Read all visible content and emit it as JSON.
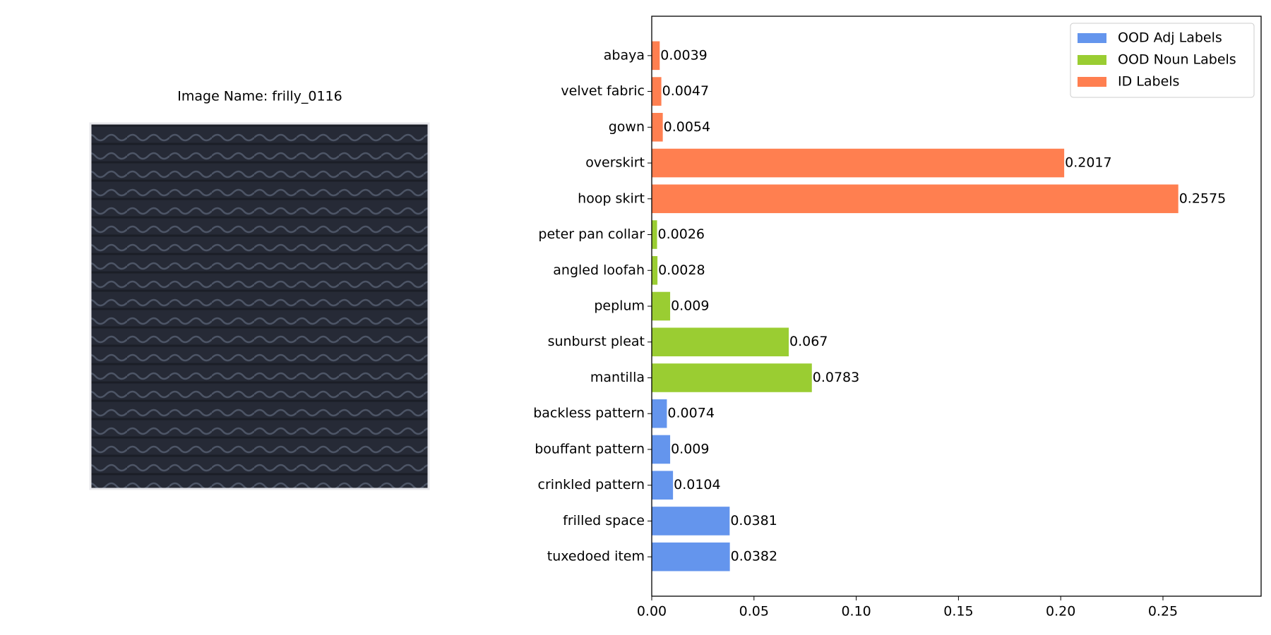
{
  "image_panel": {
    "title": "Image Name: frilly_0116"
  },
  "chart_data": {
    "type": "barh",
    "categories": [
      "abaya",
      "velvet fabric",
      "gown",
      "overskirt",
      "hoop skirt",
      "peter pan collar",
      "angled loofah",
      "peplum",
      "sunburst pleat",
      "mantilla",
      "backless pattern",
      "bouffant pattern",
      "crinkled pattern",
      "frilled space",
      "tuxedoed item"
    ],
    "series": [
      {
        "name": "OOD Adj Labels",
        "color": "#6495ed",
        "values": [
          null,
          null,
          null,
          null,
          null,
          null,
          null,
          null,
          null,
          null,
          0.0074,
          0.009,
          0.0104,
          0.0381,
          0.0382
        ]
      },
      {
        "name": "OOD Noun Labels",
        "color": "#9acd32",
        "values": [
          null,
          null,
          null,
          null,
          null,
          0.0026,
          0.0028,
          0.009,
          0.067,
          0.0783,
          null,
          null,
          null,
          null,
          null
        ]
      },
      {
        "name": "ID Labels",
        "color": "#ff7f50",
        "values": [
          0.0039,
          0.0047,
          0.0054,
          0.2017,
          0.2575,
          null,
          null,
          null,
          null,
          null,
          null,
          null,
          null,
          null,
          null
        ]
      }
    ],
    "xlim": [
      0,
      0.298
    ],
    "xticks": [
      {
        "value": 0,
        "label": "0.00"
      },
      {
        "value": 0.05,
        "label": "0.05"
      },
      {
        "value": 0.1,
        "label": "0.10"
      },
      {
        "value": 0.15,
        "label": "0.15"
      },
      {
        "value": 0.2,
        "label": "0.20"
      },
      {
        "value": 0.25,
        "label": "0.25"
      }
    ],
    "legend": "upper right"
  }
}
